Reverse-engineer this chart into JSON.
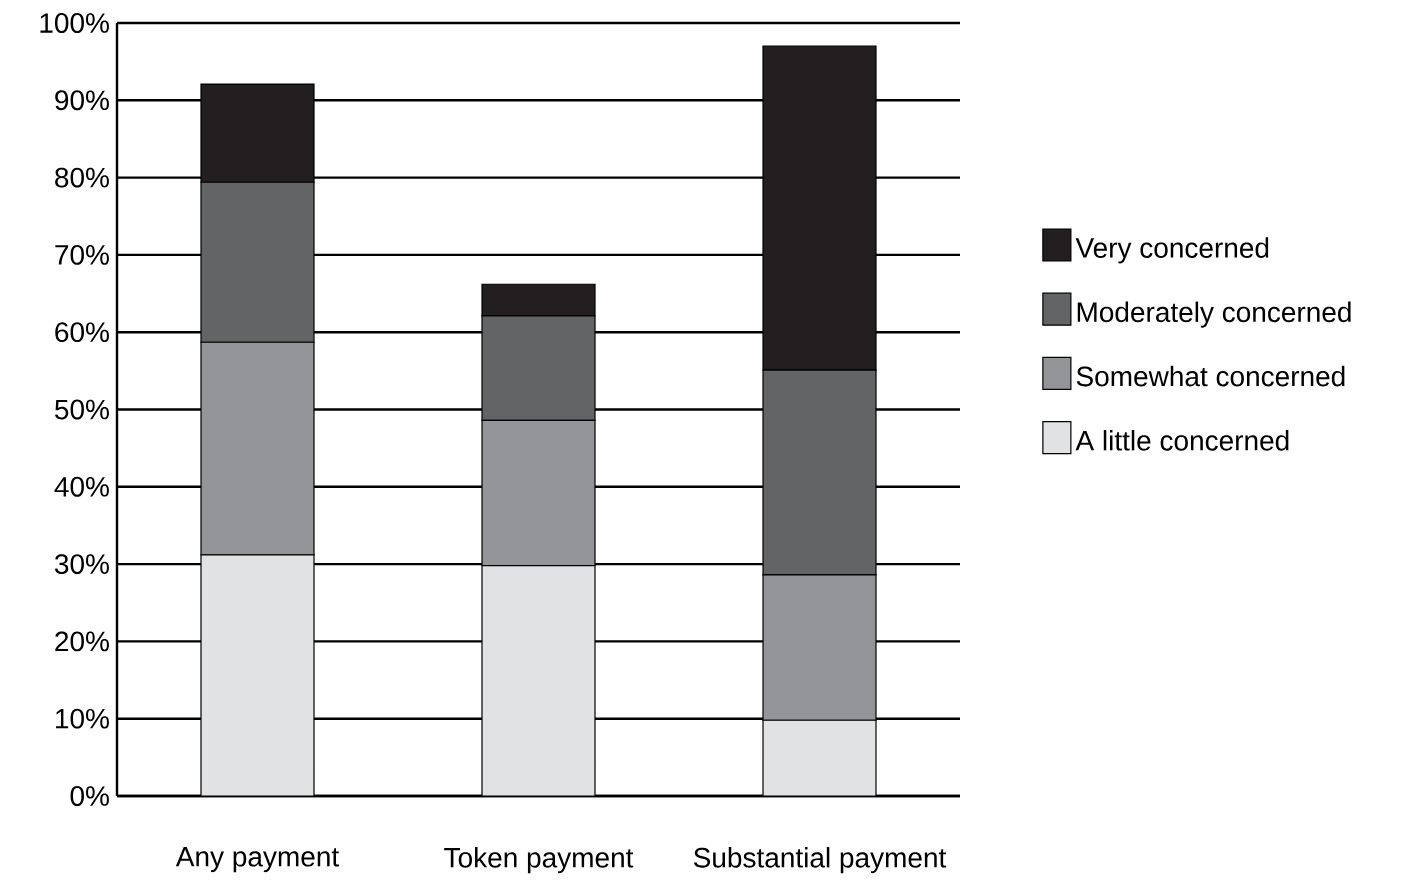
{
  "chart_data": {
    "type": "bar",
    "stacked": true,
    "categories": [
      "Any payment",
      "Token payment",
      "Substantial payment"
    ],
    "series": [
      {
        "name": "A little concerned",
        "color": "#e1e2e3",
        "values": [
          31.2,
          29.8,
          9.8
        ]
      },
      {
        "name": "Somewhat concerned",
        "color": "#939598",
        "values": [
          27.5,
          18.8,
          18.8
        ]
      },
      {
        "name": "Moderately concerned",
        "color": "#636466",
        "values": [
          20.7,
          13.5,
          26.5
        ]
      },
      {
        "name": "Very concerned",
        "color": "#231f20",
        "values": [
          12.7,
          4.1,
          41.9
        ]
      }
    ],
    "ylim": [
      0,
      100
    ],
    "yticks": [
      {
        "value": 0,
        "label": "0%"
      },
      {
        "value": 10,
        "label": "10%"
      },
      {
        "value": 20,
        "label": "20%"
      },
      {
        "value": 30,
        "label": "30%"
      },
      {
        "value": 40,
        "label": "40%"
      },
      {
        "value": 50,
        "label": "50%"
      },
      {
        "value": 60,
        "label": "60%"
      },
      {
        "value": 70,
        "label": "70%"
      },
      {
        "value": 80,
        "label": "80%"
      },
      {
        "value": 90,
        "label": "90%"
      },
      {
        "value": 100,
        "label": "100%"
      }
    ],
    "grid": "y",
    "legend": "right"
  }
}
